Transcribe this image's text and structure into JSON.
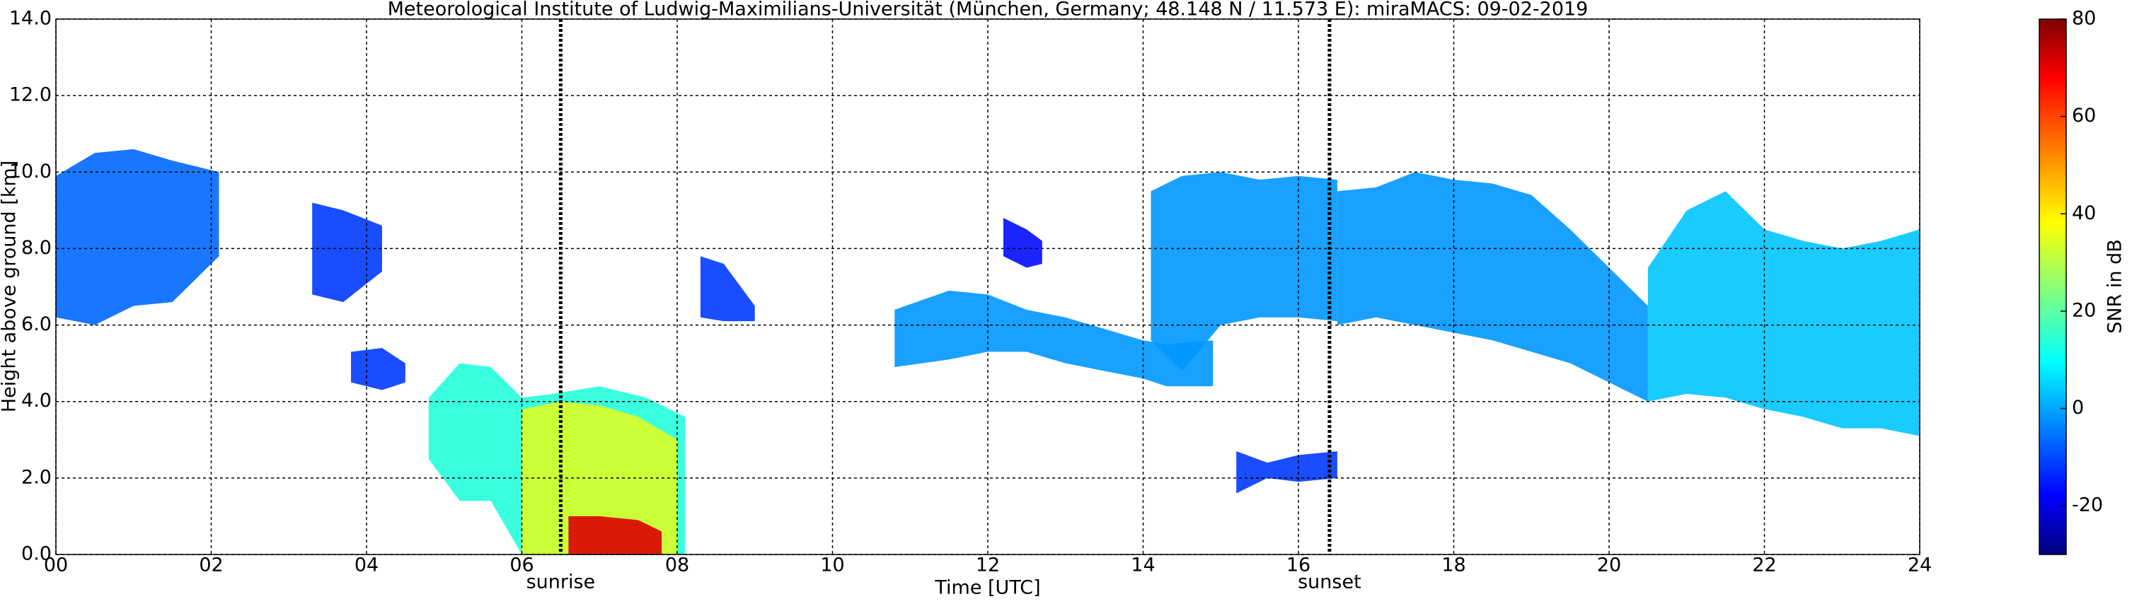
{
  "chart_data": {
    "type": "time-height",
    "title": "Meteorological Institute of Ludwig-Maximilians-Universität (München, Germany; 48.148 N / 11.573 E):    miraMACS: 09-02-2019",
    "xlabel": "Time [UTC]",
    "ylabel": "Height above ground [km]",
    "xlim": [
      0,
      24
    ],
    "xticks": [
      {
        "value": 0,
        "label": "00"
      },
      {
        "value": 2,
        "label": "02"
      },
      {
        "value": 4,
        "label": "04"
      },
      {
        "value": 6,
        "label": "06"
      },
      {
        "value": 8,
        "label": "08"
      },
      10,
      12,
      14,
      16,
      18,
      20,
      22,
      24
    ],
    "ylim": [
      0,
      14
    ],
    "yticks": [
      {
        "value": 0,
        "label": "0.0"
      },
      {
        "value": 2,
        "label": "2.0"
      },
      {
        "value": 4,
        "label": "4.0"
      },
      {
        "value": 6,
        "label": "6.0"
      },
      {
        "value": 8,
        "label": "8.0"
      },
      {
        "value": 10,
        "label": "10.0"
      },
      {
        "value": 12,
        "label": "12.0"
      },
      {
        "value": 14,
        "label": "14.0"
      }
    ],
    "grid": true,
    "colormap": "jet",
    "colorbar_label": "SNR in dB",
    "clim": [
      -30,
      80
    ],
    "cticks": [
      -20,
      0,
      20,
      40,
      60,
      80
    ],
    "annotations": [
      {
        "text": "sunrise",
        "x": 6.5
      },
      {
        "text": "sunset",
        "x": 16.4
      }
    ],
    "echoes": [
      {
        "x": [
          0,
          0.5,
          1,
          1.5,
          2.1
        ],
        "top": [
          9.9,
          10.5,
          10.6,
          10.3,
          10
        ],
        "base": [
          6.2,
          6,
          6.5,
          6.6,
          7.8
        ],
        "snr": -5
      },
      {
        "x": [
          3.3,
          3.7,
          4.2
        ],
        "top": [
          9.2,
          9.0,
          8.6
        ],
        "base": [
          6.8,
          6.6,
          7.4
        ],
        "snr": -10
      },
      {
        "x": [
          3.8,
          4.2,
          4.5
        ],
        "top": [
          5.3,
          5.4,
          5.0
        ],
        "base": [
          4.5,
          4.3,
          4.5
        ],
        "snr": -10
      },
      {
        "x": [
          4.8,
          5.2,
          5.6,
          6.0,
          6.4,
          7,
          7.6,
          8.1
        ],
        "top": [
          4.1,
          5.0,
          4.9,
          4.1,
          4.2,
          4.4,
          4.1,
          3.6
        ],
        "base": [
          2.5,
          1.4,
          1.4,
          0,
          0,
          0,
          0,
          0
        ],
        "snr": 15
      },
      {
        "x": [
          6.0,
          6.5,
          7,
          7.5,
          8.0
        ],
        "top": [
          3.8,
          4.0,
          3.9,
          3.6,
          3.0
        ],
        "base": [
          0,
          0,
          0,
          0,
          0
        ],
        "snr": 35
      },
      {
        "x": [
          6.6,
          7.0,
          7.5,
          7.8
        ],
        "top": [
          1.0,
          1.0,
          0.9,
          0.6
        ],
        "base": [
          0,
          0,
          0,
          0
        ],
        "snr": 70
      },
      {
        "x": [
          8.3,
          8.6,
          9.0
        ],
        "top": [
          7.8,
          7.6,
          6.5
        ],
        "base": [
          6.2,
          6.1,
          6.1
        ],
        "snr": -10
      },
      {
        "x": [
          10.8,
          11.5,
          12,
          12.5,
          13,
          13.5,
          14,
          14.3,
          14.9
        ],
        "top": [
          6.4,
          6.9,
          6.8,
          6.4,
          6.2,
          5.9,
          5.6,
          5.5,
          5.6
        ],
        "base": [
          4.9,
          5.1,
          5.3,
          5.3,
          5.0,
          4.8,
          4.6,
          4.4,
          4.4
        ],
        "snr": 0
      },
      {
        "x": [
          12.2,
          12.5,
          12.7
        ],
        "top": [
          8.8,
          8.5,
          8.2
        ],
        "base": [
          7.8,
          7.5,
          7.6
        ],
        "snr": -15
      },
      {
        "x": [
          14.1,
          14.5,
          15,
          15.5,
          16,
          16.5
        ],
        "top": [
          9.5,
          9.9,
          10,
          9.8,
          9.9,
          9.8
        ],
        "base": [
          5.6,
          4.8,
          6,
          6.2,
          6.2,
          6.1
        ],
        "snr": 0
      },
      {
        "x": [
          16.5,
          17,
          17.5,
          18,
          18.5,
          19,
          19.5,
          20,
          20.5
        ],
        "top": [
          9.5,
          9.6,
          10,
          9.8,
          9.7,
          9.4,
          8.5,
          7.5,
          6.5
        ],
        "base": [
          6.0,
          6.2,
          6.0,
          5.8,
          5.6,
          5.3,
          5.0,
          4.5,
          4.0
        ],
        "snr": 0
      },
      {
        "x": [
          20.5,
          21,
          21.5,
          22,
          22.5,
          23,
          23.5,
          24
        ],
        "top": [
          7.5,
          9.0,
          9.5,
          8.5,
          8.2,
          8,
          8.2,
          8.5
        ],
        "base": [
          4.0,
          4.2,
          4.1,
          3.8,
          3.6,
          3.3,
          3.3,
          3.1
        ],
        "snr": 5
      },
      {
        "x": [
          15.2,
          15.6,
          16.0,
          16.5
        ],
        "top": [
          2.7,
          2.4,
          2.6,
          2.7
        ],
        "base": [
          1.6,
          2.0,
          1.9,
          2.0
        ],
        "snr": -10
      }
    ]
  }
}
